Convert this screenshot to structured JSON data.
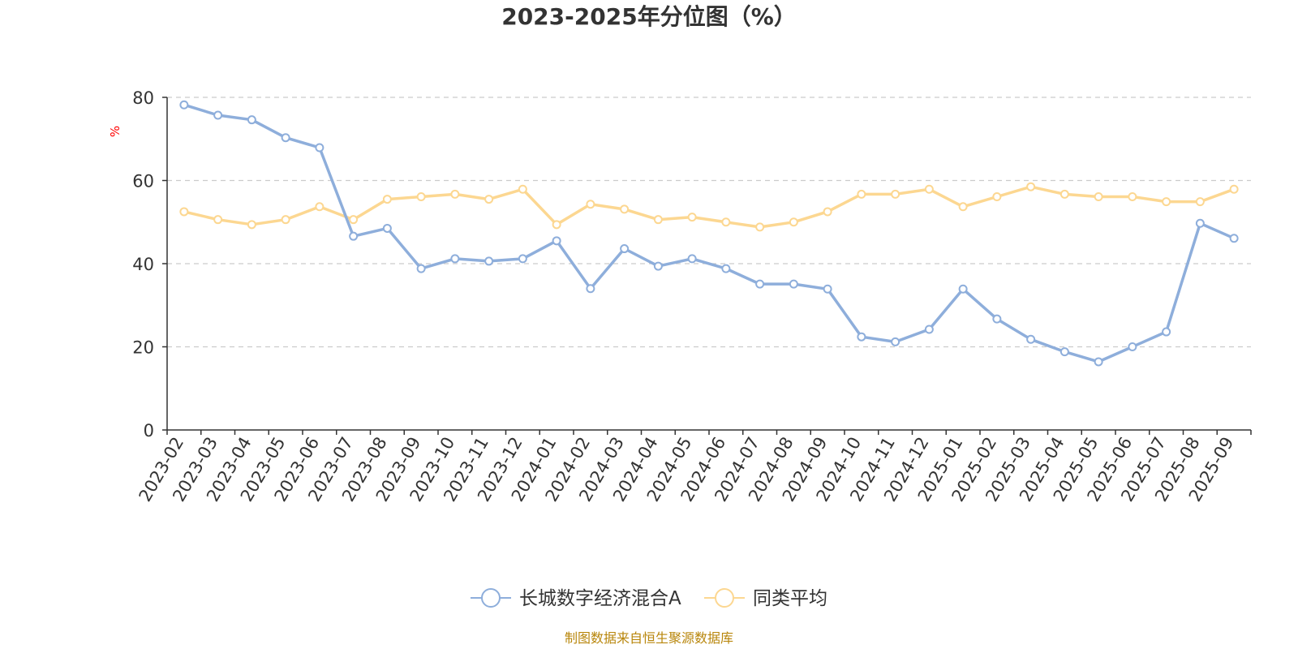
{
  "chart_data": {
    "type": "line",
    "title": "2023-2025年分位图（%）",
    "ylabel": "%",
    "xlabel": "",
    "ylim": [
      0,
      80
    ],
    "yticks": [
      0,
      20,
      40,
      60,
      80
    ],
    "grid": true,
    "legend_position": "bottom",
    "x": [
      "2023-02",
      "2023-03",
      "2023-04",
      "2023-05",
      "2023-06",
      "2023-07",
      "2023-08",
      "2023-09",
      "2023-10",
      "2023-11",
      "2023-12",
      "2024-01",
      "2024-02",
      "2024-03",
      "2024-04",
      "2024-05",
      "2024-06",
      "2024-07",
      "2024-08",
      "2024-09",
      "2024-10",
      "2024-11",
      "2024-12",
      "2025-01",
      "2025-02",
      "2025-03",
      "2025-04",
      "2025-05",
      "2025-06",
      "2025-07",
      "2025-08",
      "2025-09"
    ],
    "series": [
      {
        "name": "长城数字经济混合A",
        "color": "#8eaedb",
        "values": [
          78.2,
          75.7,
          74.6,
          70.3,
          67.9,
          46.6,
          48.5,
          38.8,
          41.2,
          40.6,
          41.2,
          45.5,
          34.0,
          43.6,
          39.4,
          41.2,
          38.8,
          35.1,
          35.1,
          33.9,
          22.4,
          21.2,
          24.2,
          33.9,
          26.7,
          21.8,
          18.8,
          16.4,
          20.0,
          23.6,
          49.7,
          46.1
        ]
      },
      {
        "name": "同类平均",
        "color": "#fcd791",
        "values": [
          52.5,
          50.6,
          49.4,
          50.6,
          53.7,
          50.6,
          55.5,
          56.1,
          56.7,
          55.5,
          57.9,
          49.4,
          54.3,
          53.1,
          50.6,
          51.2,
          50.0,
          48.8,
          50.0,
          52.5,
          56.7,
          56.7,
          57.9,
          53.7,
          56.1,
          58.5,
          56.7,
          56.1,
          56.1,
          54.9,
          54.9,
          57.9
        ]
      }
    ]
  },
  "footer": {
    "source_text": "制图数据来自恒生聚源数据库"
  },
  "colors": {
    "title": "#333333",
    "axis": "#333333",
    "grid": "#cccccc",
    "ylabel": "#ff0000",
    "source": "#b8860b"
  }
}
